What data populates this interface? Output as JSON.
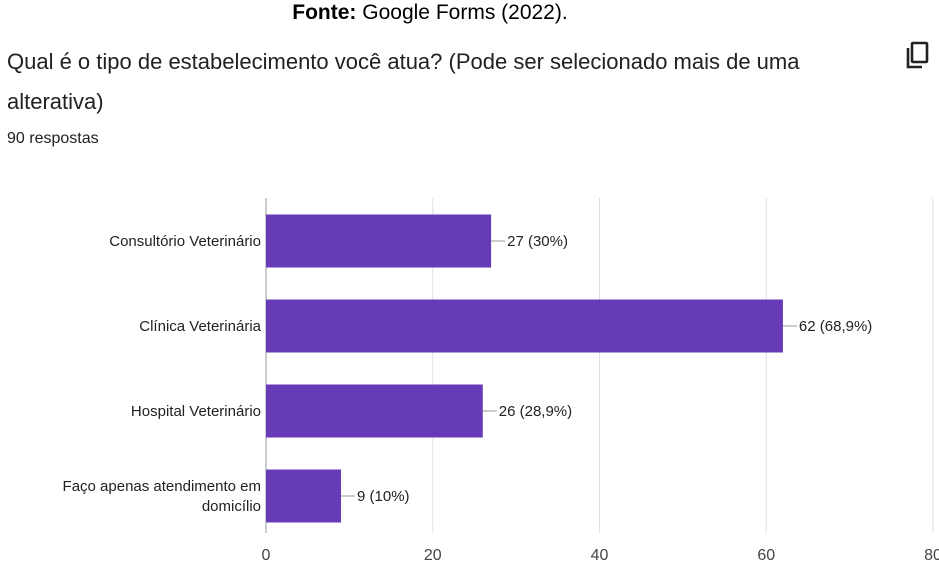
{
  "caption": {
    "bold": "Fonte:",
    "text": " Google Forms (2022)."
  },
  "question": {
    "title": "Qual é o tipo de estabelecimento você atua? (Pode ser selecionado mais de uma alterativa)"
  },
  "responses": {
    "text": "90 respostas"
  },
  "icons": {
    "copy": "copy-icon"
  },
  "colors": {
    "bar": "#673ab7",
    "grid": "#e0e0e0",
    "axis": "#999999"
  },
  "chart_data": {
    "type": "bar",
    "orientation": "horizontal",
    "categories": [
      [
        "Consultório Veterinário"
      ],
      [
        "Clínica Veterinária"
      ],
      [
        "Hospital Veterinário"
      ],
      [
        "Faço apenas atendimento em",
        "domicílio"
      ]
    ],
    "values": [
      27,
      62,
      26,
      9
    ],
    "data_labels": [
      "27 (30%)",
      "62 (68,9%)",
      "26 (28,9%)",
      "9 (10%)"
    ],
    "xlim": [
      0,
      80
    ],
    "xticks": [
      0,
      20,
      40,
      60,
      80
    ],
    "grid": true
  }
}
